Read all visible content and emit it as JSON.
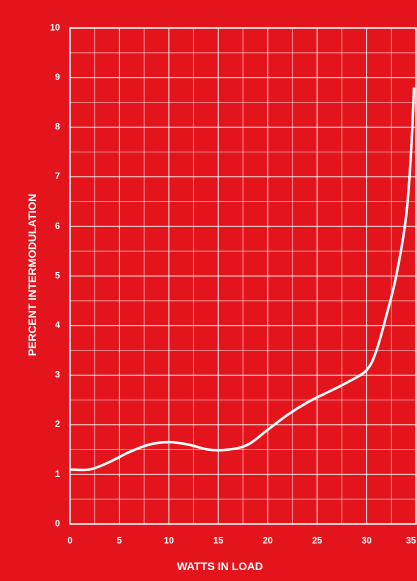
{
  "chart_data": {
    "type": "line",
    "x_label": "WATTS IN LOAD",
    "y_label": "PERCENT INTERMODULATION",
    "xlim": [
      0,
      35
    ],
    "ylim": [
      0,
      10
    ],
    "xticks": [
      0,
      5,
      10,
      15,
      20,
      25,
      30,
      35
    ],
    "yticks": [
      0,
      1,
      2,
      3,
      4,
      5,
      6,
      7,
      8,
      9,
      10
    ],
    "grid": true,
    "series": [
      {
        "color": "#ffffff",
        "x": [
          0,
          2,
          4,
          6,
          8,
          10,
          12,
          14,
          16,
          18,
          20,
          22,
          24,
          26,
          28,
          30,
          31,
          32,
          33,
          34,
          34.5,
          34.8
        ],
        "values": [
          1.1,
          1.1,
          1.25,
          1.45,
          1.6,
          1.65,
          1.6,
          1.5,
          1.5,
          1.6,
          1.9,
          2.2,
          2.45,
          2.65,
          2.85,
          3.1,
          3.5,
          4.2,
          5.0,
          6.2,
          7.5,
          8.8
        ]
      }
    ]
  }
}
